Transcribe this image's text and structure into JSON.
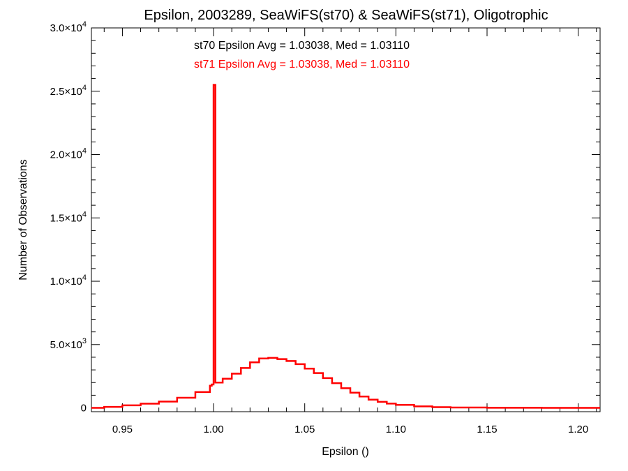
{
  "chart_data": {
    "type": "line",
    "title": "Epsilon, 2003289, SeaWiFS(st70) & SeaWiFS(st71), Oligotrophic",
    "xlabel": "Epsilon ()",
    "ylabel": "Number of Observations",
    "xlim": [
      0.933,
      1.212
    ],
    "ylim": [
      -300,
      30000
    ],
    "x_ticks": [
      0.95,
      1.0,
      1.05,
      1.1,
      1.15,
      1.2
    ],
    "x_tick_labels": [
      "0.95",
      "1.00",
      "1.05",
      "1.10",
      "1.15",
      "1.20"
    ],
    "y_ticks": [
      {
        "value": 0,
        "mant": "0",
        "exp": ""
      },
      {
        "value": 5000,
        "mant": "5.0×10",
        "exp": "3"
      },
      {
        "value": 10000,
        "mant": "1.0×10",
        "exp": "4"
      },
      {
        "value": 15000,
        "mant": "1.5×10",
        "exp": "4"
      },
      {
        "value": 20000,
        "mant": "2.0×10",
        "exp": "4"
      },
      {
        "value": 25000,
        "mant": "2.5×10",
        "exp": "4"
      },
      {
        "value": 30000,
        "mant": "3.0×10",
        "exp": "4"
      }
    ],
    "annotations": [
      {
        "text": "st70 Epsilon Avg = 1.03038, Med = 1.03110",
        "color": "#000000"
      },
      {
        "text": "st71 Epsilon Avg = 1.03038, Med = 1.03110",
        "color": "#ff0000"
      }
    ],
    "grid": false,
    "series": [
      {
        "color": "#ff0000",
        "step": true,
        "points": [
          [
            0.933,
            0
          ],
          [
            0.94,
            80
          ],
          [
            0.95,
            200
          ],
          [
            0.96,
            330
          ],
          [
            0.97,
            500
          ],
          [
            0.98,
            800
          ],
          [
            0.99,
            1250
          ],
          [
            0.998,
            1750
          ],
          [
            0.999,
            1850
          ],
          [
            1.0,
            25500
          ],
          [
            1.001,
            2000
          ],
          [
            1.005,
            2300
          ],
          [
            1.01,
            2700
          ],
          [
            1.015,
            3150
          ],
          [
            1.02,
            3600
          ],
          [
            1.025,
            3900
          ],
          [
            1.03,
            3950
          ],
          [
            1.035,
            3850
          ],
          [
            1.04,
            3700
          ],
          [
            1.045,
            3450
          ],
          [
            1.05,
            3100
          ],
          [
            1.055,
            2750
          ],
          [
            1.06,
            2350
          ],
          [
            1.065,
            1950
          ],
          [
            1.07,
            1550
          ],
          [
            1.075,
            1200
          ],
          [
            1.08,
            900
          ],
          [
            1.085,
            650
          ],
          [
            1.09,
            480
          ],
          [
            1.095,
            340
          ],
          [
            1.1,
            240
          ],
          [
            1.11,
            120
          ],
          [
            1.12,
            60
          ],
          [
            1.13,
            30
          ],
          [
            1.15,
            10
          ],
          [
            1.18,
            0
          ],
          [
            1.212,
            0
          ]
        ]
      }
    ]
  }
}
